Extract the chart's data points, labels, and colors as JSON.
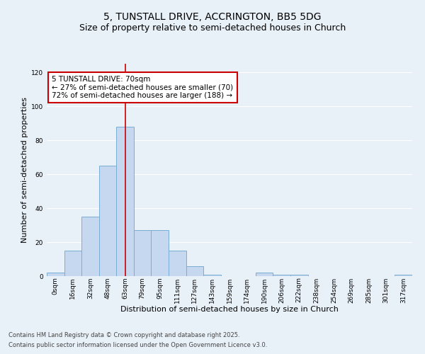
{
  "title1": "5, TUNSTALL DRIVE, ACCRINGTON, BB5 5DG",
  "title2": "Size of property relative to semi-detached houses in Church",
  "xlabel": "Distribution of semi-detached houses by size in Church",
  "ylabel": "Number of semi-detached properties",
  "bin_labels": [
    "0sqm",
    "16sqm",
    "32sqm",
    "48sqm",
    "63sqm",
    "79sqm",
    "95sqm",
    "111sqm",
    "127sqm",
    "143sqm",
    "159sqm",
    "174sqm",
    "190sqm",
    "206sqm",
    "222sqm",
    "238sqm",
    "254sqm",
    "269sqm",
    "285sqm",
    "301sqm",
    "317sqm"
  ],
  "bar_heights": [
    2,
    15,
    35,
    65,
    88,
    27,
    27,
    15,
    6,
    1,
    0,
    0,
    2,
    1,
    1,
    0,
    0,
    0,
    0,
    0,
    1
  ],
  "bar_color": "#c5d8f0",
  "bar_edge_color": "#7aadd4",
  "ylim": [
    0,
    125
  ],
  "yticks": [
    0,
    20,
    40,
    60,
    80,
    100,
    120
  ],
  "annotation_title": "5 TUNSTALL DRIVE: 70sqm",
  "annotation_line1": "← 27% of semi-detached houses are smaller (70)",
  "annotation_line2": "72% of semi-detached houses are larger (188) →",
  "vline_bin_index": 4,
  "footer1": "Contains HM Land Registry data © Crown copyright and database right 2025.",
  "footer2": "Contains public sector information licensed under the Open Government Licence v3.0.",
  "background_color": "#e8f0f8",
  "annotation_box_color": "#ffffff",
  "annotation_box_edge": "#cc0000",
  "vline_color": "#cc0000",
  "grid_color": "#ffffff",
  "title_fontsize": 10,
  "subtitle_fontsize": 9,
  "axis_label_fontsize": 8,
  "tick_fontsize": 6.5,
  "annotation_fontsize": 7.5,
  "footer_fontsize": 6
}
